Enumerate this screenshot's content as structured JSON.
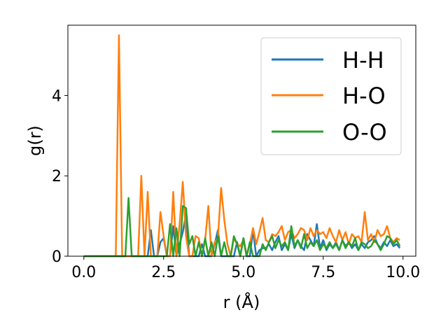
{
  "chart_data": {
    "type": "line",
    "title": "",
    "xlabel": "r (Å)",
    "ylabel": "g(r)",
    "xlim": [
      -0.5,
      10.4
    ],
    "ylim": [
      0,
      5.75
    ],
    "xticks": [
      0.0,
      2.5,
      5.0,
      7.5,
      10.0
    ],
    "xtick_labels": [
      "0.0",
      "2.5",
      "5.0",
      "7.5",
      "10.0"
    ],
    "yticks": [
      0,
      2,
      4
    ],
    "ytick_labels": [
      "0",
      "2",
      "4"
    ],
    "grid": false,
    "legend_position": "top-right",
    "series": [
      {
        "name": "H-H",
        "color": "#1f77b4",
        "x": [
          0.0,
          0.1,
          0.2,
          0.3,
          0.4,
          0.5,
          0.6,
          0.7,
          0.8,
          0.9,
          1.0,
          1.1,
          1.2,
          1.3,
          1.4,
          1.5,
          1.6,
          1.7,
          1.8,
          1.9,
          2.0,
          2.1,
          2.2,
          2.3,
          2.4,
          2.5,
          2.6,
          2.7,
          2.8,
          2.9,
          3.0,
          3.1,
          3.2,
          3.3,
          3.4,
          3.5,
          3.6,
          3.7,
          3.8,
          3.9,
          4.0,
          4.1,
          4.2,
          4.3,
          4.4,
          4.5,
          4.6,
          4.7,
          4.8,
          4.9,
          5.0,
          5.1,
          5.2,
          5.3,
          5.4,
          5.5,
          5.6,
          5.7,
          5.8,
          5.9,
          6.0,
          6.1,
          6.2,
          6.3,
          6.4,
          6.5,
          6.6,
          6.7,
          6.8,
          6.9,
          7.0,
          7.1,
          7.2,
          7.3,
          7.4,
          7.5,
          7.6,
          7.7,
          7.8,
          7.9,
          8.0,
          8.1,
          8.2,
          8.3,
          8.4,
          8.5,
          8.6,
          8.7,
          8.8,
          8.9,
          9.0,
          9.1,
          9.2,
          9.3,
          9.4,
          9.5,
          9.6,
          9.7,
          9.8,
          9.9
        ],
        "y": [
          0,
          0,
          0,
          0,
          0,
          0,
          0,
          0,
          0,
          0,
          0,
          0,
          0,
          0,
          0,
          0,
          0,
          0,
          0,
          0,
          0,
          0.65,
          0,
          0,
          0.35,
          0.45,
          0,
          0,
          0.75,
          0,
          0.3,
          0.6,
          1.05,
          0,
          0,
          0,
          0,
          0.3,
          0,
          0,
          0,
          0.3,
          0.65,
          0,
          0,
          0,
          0,
          0,
          0.35,
          0,
          0.45,
          0,
          0,
          0.65,
          0,
          0.15,
          0.2,
          0.2,
          0.3,
          0.15,
          0.35,
          0.5,
          0.15,
          0.3,
          0.15,
          0.55,
          0.2,
          0.4,
          0.25,
          0.15,
          0.55,
          0.4,
          0.25,
          0.8,
          0.2,
          0.4,
          0.15,
          0.3,
          0.2,
          0.35,
          0.15,
          0.4,
          0.25,
          0.35,
          0.2,
          0.3,
          0.15,
          0.3,
          0.2,
          0.35,
          0.4,
          0.5,
          0.3,
          0.2,
          0.35,
          0.25,
          0.4,
          0.25,
          0.3,
          0.2
        ]
      },
      {
        "name": "H-O",
        "color": "#ff7f0e",
        "x": [
          0.0,
          0.1,
          0.2,
          0.3,
          0.4,
          0.5,
          0.6,
          0.7,
          0.8,
          0.9,
          1.0,
          1.1,
          1.2,
          1.3,
          1.4,
          1.5,
          1.6,
          1.7,
          1.8,
          1.9,
          2.0,
          2.1,
          2.2,
          2.3,
          2.4,
          2.5,
          2.6,
          2.7,
          2.8,
          2.9,
          3.0,
          3.1,
          3.2,
          3.3,
          3.4,
          3.5,
          3.6,
          3.7,
          3.8,
          3.9,
          4.0,
          4.1,
          4.2,
          4.3,
          4.4,
          4.5,
          4.6,
          4.7,
          4.8,
          4.9,
          5.0,
          5.1,
          5.2,
          5.3,
          5.4,
          5.5,
          5.6,
          5.7,
          5.8,
          5.9,
          6.0,
          6.1,
          6.2,
          6.3,
          6.4,
          6.5,
          6.6,
          6.7,
          6.8,
          6.9,
          7.0,
          7.1,
          7.2,
          7.3,
          7.4,
          7.5,
          7.6,
          7.7,
          7.8,
          7.9,
          8.0,
          8.1,
          8.2,
          8.3,
          8.4,
          8.5,
          8.6,
          8.7,
          8.8,
          8.9,
          9.0,
          9.1,
          9.2,
          9.3,
          9.4,
          9.5,
          9.6,
          9.7,
          9.8,
          9.9
        ],
        "y": [
          0,
          0,
          0,
          0,
          0,
          0,
          0,
          0,
          0,
          0,
          0,
          5.5,
          0,
          0,
          0,
          0,
          0,
          0,
          2.0,
          0,
          1.6,
          0,
          0,
          0,
          1.1,
          0.5,
          0,
          0,
          1.6,
          0,
          0.8,
          1.85,
          0.5,
          0,
          0,
          0.5,
          0.45,
          0,
          0.4,
          1.25,
          0,
          0.35,
          0.45,
          1.7,
          0.9,
          0.3,
          0,
          0.45,
          0.3,
          0.25,
          0.4,
          0,
          0.3,
          0.7,
          0.3,
          0.6,
          0.95,
          0.4,
          0.35,
          0.55,
          0.5,
          0.6,
          0.75,
          0.4,
          0.6,
          0.65,
          0.45,
          0.55,
          0.7,
          0.65,
          0.4,
          0.7,
          0.5,
          0.65,
          0.55,
          0.6,
          0.45,
          0.7,
          0.5,
          0.35,
          0.65,
          0.4,
          0.6,
          0.3,
          0.55,
          0.45,
          0.5,
          0.35,
          1.1,
          0.4,
          0.55,
          0.35,
          0.65,
          0.5,
          0.55,
          0.75,
          0.45,
          0.35,
          0.45,
          0.4
        ]
      },
      {
        "name": "O-O",
        "color": "#2ca02c",
        "x": [
          0.0,
          0.1,
          0.2,
          0.3,
          0.4,
          0.5,
          0.6,
          0.7,
          0.8,
          0.9,
          1.0,
          1.1,
          1.2,
          1.3,
          1.4,
          1.5,
          1.6,
          1.7,
          1.8,
          1.9,
          2.0,
          2.1,
          2.2,
          2.3,
          2.4,
          2.5,
          2.6,
          2.7,
          2.8,
          2.9,
          3.0,
          3.1,
          3.2,
          3.3,
          3.4,
          3.5,
          3.6,
          3.7,
          3.8,
          3.9,
          4.0,
          4.1,
          4.2,
          4.3,
          4.4,
          4.5,
          4.6,
          4.7,
          4.8,
          4.9,
          5.0,
          5.1,
          5.2,
          5.3,
          5.4,
          5.5,
          5.6,
          5.7,
          5.8,
          5.9,
          6.0,
          6.1,
          6.2,
          6.3,
          6.4,
          6.5,
          6.6,
          6.7,
          6.8,
          6.9,
          7.0,
          7.1,
          7.2,
          7.3,
          7.4,
          7.5,
          7.6,
          7.7,
          7.8,
          7.9,
          8.0,
          8.1,
          8.2,
          8.3,
          8.4,
          8.5,
          8.6,
          8.7,
          8.8,
          8.9,
          9.0,
          9.1,
          9.2,
          9.3,
          9.4,
          9.5,
          9.6,
          9.7,
          9.8,
          9.9
        ],
        "y": [
          0,
          0,
          0,
          0,
          0,
          0,
          0,
          0,
          0,
          0,
          0,
          0,
          0,
          0,
          1.45,
          0,
          0,
          0,
          0,
          0,
          0,
          0,
          0,
          0,
          0,
          0,
          0,
          0.8,
          0,
          0.7,
          0,
          1.25,
          1.2,
          0.3,
          0.5,
          0,
          0.35,
          0,
          0.45,
          0,
          0.35,
          0,
          0.5,
          0,
          0.35,
          0,
          0,
          0.5,
          0.3,
          0,
          0.45,
          0,
          0.35,
          0,
          0,
          0,
          0.3,
          0.15,
          0.35,
          0.5,
          0.2,
          0.4,
          0.25,
          0.35,
          0.15,
          0.75,
          0.25,
          0.4,
          0.2,
          0.55,
          0.2,
          0.35,
          0.25,
          0.4,
          0.15,
          0.3,
          0.2,
          0.35,
          0.2,
          0.3,
          0.15,
          0.4,
          0.2,
          0.35,
          0.25,
          0.45,
          0.15,
          0.35,
          0.3,
          0.2,
          0.25,
          0.4,
          0.3,
          0.15,
          0.3,
          0.5,
          0.45,
          0.3,
          0.4,
          0.25
        ]
      }
    ]
  }
}
